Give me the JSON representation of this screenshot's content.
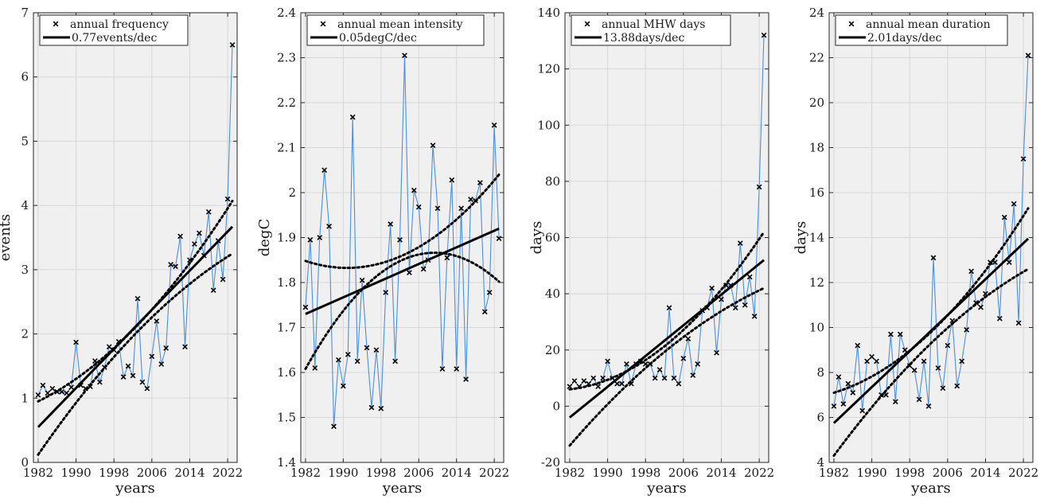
{
  "colors": {
    "background": "#ffffff",
    "axes_bg": "#f0f0f0",
    "grid": "#d7d7d7",
    "series_line": "#4a90d9",
    "marker": "#000000",
    "trend": "#000000"
  },
  "chart_data": [
    {
      "type": "line",
      "xlabel": "years",
      "ylabel": "events",
      "xlim": [
        1981,
        2024
      ],
      "ylim": [
        0,
        7
      ],
      "xticks": [
        1982,
        1990,
        1998,
        2006,
        2014,
        2022
      ],
      "yticks": [
        0,
        1,
        2,
        3,
        4,
        5,
        6,
        7
      ],
      "xtick_labels": [
        "1982",
        "1990",
        "1998",
        "2006",
        "2014",
        "2022"
      ],
      "ytick_labels": [
        "0",
        "1",
        "2",
        "3",
        "4",
        "5",
        "6",
        "7"
      ],
      "grid": true,
      "legend_position": "top-left",
      "legend": [
        "annual frequency",
        "0.77events/dec"
      ],
      "years": [
        1982,
        1983,
        1984,
        1985,
        1986,
        1987,
        1988,
        1989,
        1990,
        1991,
        1992,
        1993,
        1994,
        1995,
        1996,
        1997,
        1998,
        1999,
        2000,
        2001,
        2002,
        2003,
        2004,
        2005,
        2006,
        2007,
        2008,
        2009,
        2010,
        2011,
        2012,
        2013,
        2014,
        2015,
        2016,
        2017,
        2018,
        2019,
        2020,
        2021,
        2022,
        2023
      ],
      "values": [
        1.05,
        1.2,
        1.08,
        1.15,
        1.1,
        1.1,
        1.08,
        1.17,
        1.87,
        1.2,
        1.15,
        1.18,
        1.58,
        1.25,
        1.48,
        1.8,
        1.75,
        1.88,
        1.33,
        1.5,
        1.35,
        2.55,
        1.25,
        1.15,
        1.65,
        2.2,
        1.53,
        1.78,
        3.08,
        3.05,
        3.52,
        1.8,
        3.15,
        3.4,
        3.57,
        3.22,
        3.9,
        2.68,
        3.45,
        2.85,
        4.1,
        6.5
      ],
      "trend": {
        "start": 0.55,
        "end": 3.67
      },
      "ci_upper": {
        "start": 0.95,
        "mid": 2.1,
        "end": 4.07
      },
      "ci_lower": {
        "start": 0.12,
        "mid": 2.0,
        "end": 3.25
      }
    },
    {
      "type": "line",
      "xlabel": "years",
      "ylabel": "degC",
      "xlim": [
        1981,
        2024
      ],
      "ylim": [
        1.4,
        2.4
      ],
      "xticks": [
        1982,
        1990,
        1998,
        2006,
        2014,
        2022
      ],
      "yticks": [
        1.4,
        1.5,
        1.6,
        1.7,
        1.8,
        1.9,
        2.0,
        2.1,
        2.2,
        2.3,
        2.4
      ],
      "xtick_labels": [
        "1982",
        "1990",
        "1998",
        "2006",
        "2014",
        "2022"
      ],
      "ytick_labels": [
        "1.4",
        "1.5",
        "1.6",
        "1.7",
        "1.8",
        "1.9",
        "2",
        "2.1",
        "2.2",
        "2.3",
        "2.4"
      ],
      "grid": true,
      "legend_position": "top-left",
      "legend": [
        "annual mean intensity",
        "0.05degC/dec"
      ],
      "years": [
        1982,
        1983,
        1984,
        1985,
        1986,
        1987,
        1988,
        1989,
        1990,
        1991,
        1992,
        1993,
        1994,
        1995,
        1996,
        1997,
        1998,
        1999,
        2000,
        2001,
        2002,
        2003,
        2004,
        2005,
        2006,
        2007,
        2008,
        2009,
        2010,
        2011,
        2012,
        2013,
        2014,
        2015,
        2016,
        2017,
        2018,
        2019,
        2020,
        2021,
        2022,
        2023
      ],
      "values": [
        1.745,
        1.895,
        1.61,
        1.9,
        2.05,
        1.925,
        1.48,
        1.628,
        1.57,
        1.64,
        2.168,
        1.625,
        1.805,
        1.655,
        1.522,
        1.65,
        1.52,
        1.778,
        1.93,
        1.625,
        1.895,
        2.305,
        1.822,
        2.005,
        1.968,
        1.83,
        1.85,
        2.105,
        1.965,
        1.608,
        1.855,
        2.028,
        1.608,
        1.965,
        1.585,
        1.985,
        1.982,
        2.022,
        1.735,
        1.778,
        2.15,
        1.898
      ],
      "trend": {
        "start": 1.73,
        "end": 1.92
      },
      "ci_upper": {
        "start": 1.848,
        "mid": 1.86,
        "end": 2.04
      },
      "ci_lower": {
        "start": 1.608,
        "mid": 1.85,
        "end": 1.802
      }
    },
    {
      "type": "line",
      "xlabel": "years",
      "ylabel": "days",
      "xlim": [
        1981,
        2024
      ],
      "ylim": [
        -20,
        140
      ],
      "xticks": [
        1982,
        1990,
        1998,
        2006,
        2014,
        2022
      ],
      "yticks": [
        -20,
        0,
        20,
        40,
        60,
        80,
        100,
        120,
        140
      ],
      "xtick_labels": [
        "1982",
        "1990",
        "1998",
        "2006",
        "2014",
        "2022"
      ],
      "ytick_labels": [
        "-20",
        "0",
        "20",
        "40",
        "60",
        "80",
        "100",
        "120",
        "140"
      ],
      "grid": true,
      "legend_position": "top-left",
      "legend": [
        "annual MHW days",
        "13.88days/dec"
      ],
      "years": [
        1982,
        1983,
        1984,
        1985,
        1986,
        1987,
        1988,
        1989,
        1990,
        1991,
        1992,
        1993,
        1994,
        1995,
        1996,
        1997,
        1998,
        1999,
        2000,
        2001,
        2002,
        2003,
        2004,
        2005,
        2006,
        2007,
        2008,
        2009,
        2010,
        2011,
        2012,
        2013,
        2014,
        2015,
        2016,
        2017,
        2018,
        2019,
        2020,
        2021,
        2022,
        2023
      ],
      "values": [
        7,
        9,
        7,
        9,
        8,
        10,
        7,
        10,
        16,
        10,
        8,
        8,
        15,
        8,
        15,
        16,
        15,
        15,
        10,
        13,
        10,
        35,
        10,
        8,
        17,
        24,
        11,
        15,
        34,
        35,
        42,
        19,
        38,
        43,
        43,
        35,
        58,
        36,
        46,
        32,
        78,
        132
      ],
      "trend": {
        "start": -4,
        "end": 52
      },
      "ci_upper": {
        "start": 6,
        "mid": 22,
        "end": 62
      },
      "ci_lower": {
        "start": -14,
        "mid": 20,
        "end": 42
      }
    },
    {
      "type": "line",
      "xlabel": "years",
      "ylabel": "days",
      "xlim": [
        1981,
        2024
      ],
      "ylim": [
        4,
        24
      ],
      "xticks": [
        1982,
        1990,
        1998,
        2006,
        2014,
        2022
      ],
      "yticks": [
        4,
        6,
        8,
        10,
        12,
        14,
        16,
        18,
        20,
        22,
        24
      ],
      "xtick_labels": [
        "1982",
        "1990",
        "1998",
        "2006",
        "2014",
        "2022"
      ],
      "ytick_labels": [
        "4",
        "6",
        "8",
        "10",
        "12",
        "14",
        "16",
        "18",
        "20",
        "22",
        "24"
      ],
      "grid": true,
      "legend_position": "top-left",
      "legend": [
        "annual mean duration",
        "2.01days/dec"
      ],
      "years": [
        1982,
        1983,
        1984,
        1985,
        1986,
        1987,
        1988,
        1989,
        1990,
        1991,
        1992,
        1993,
        1994,
        1995,
        1996,
        1997,
        1998,
        1999,
        2000,
        2001,
        2002,
        2003,
        2004,
        2005,
        2006,
        2007,
        2008,
        2009,
        2010,
        2011,
        2012,
        2013,
        2014,
        2015,
        2016,
        2017,
        2018,
        2019,
        2020,
        2021,
        2022,
        2023
      ],
      "values": [
        6.5,
        7.8,
        6.6,
        7.5,
        7.1,
        9.2,
        6.3,
        8.5,
        8.7,
        8.5,
        7,
        7,
        9.7,
        6.7,
        9.7,
        9,
        8.3,
        8.1,
        6.8,
        8.5,
        6.5,
        13.1,
        8.2,
        7.3,
        9.2,
        10.3,
        7.4,
        8.5,
        9.9,
        12.5,
        11.1,
        10.9,
        11.5,
        12.9,
        12.9,
        10.4,
        14.9,
        12.9,
        15.5,
        10.2,
        17.5,
        22.1
      ],
      "trend": {
        "start": 5.75,
        "end": 13.95
      },
      "ci_upper": {
        "start": 7.1,
        "mid": 9.8,
        "end": 15.3
      },
      "ci_lower": {
        "start": 4.3,
        "mid": 9.3,
        "end": 12.6
      }
    }
  ]
}
